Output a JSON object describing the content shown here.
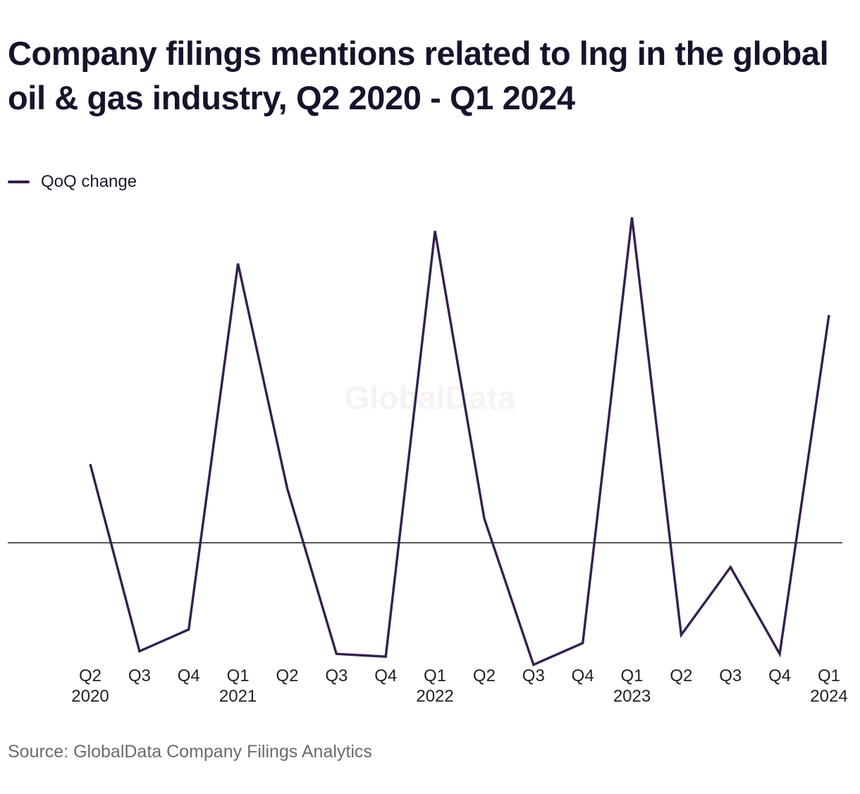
{
  "title": "Company filings mentions related to lng in the global oil & gas industry, Q2 2020 - Q1 2024",
  "legend": {
    "label": "QoQ change",
    "color": "#33204f"
  },
  "watermark": "GlobalData",
  "source": "Source: GlobalData Company Filings Analytics",
  "colors": {
    "line": "#33204f",
    "zero_line": "#111111",
    "text": "#222222"
  },
  "chart_data": {
    "type": "line",
    "title": "Company filings mentions related to lng in the global oil & gas industry, Q2 2020 - Q1 2024",
    "xlabel": "",
    "ylabel": "",
    "grid": false,
    "legend_position": "top-left",
    "zero_line": true,
    "y_axis_labels_shown": false,
    "ylim": [
      -4.3,
      11.8
    ],
    "categories": [
      [
        "Q2",
        "2020"
      ],
      [
        "Q3",
        ""
      ],
      [
        "Q4",
        ""
      ],
      [
        "Q1",
        "2021"
      ],
      [
        "Q2",
        ""
      ],
      [
        "Q3",
        ""
      ],
      [
        "Q4",
        ""
      ],
      [
        "Q1",
        "2022"
      ],
      [
        "Q2",
        ""
      ],
      [
        "Q3",
        ""
      ],
      [
        "Q4",
        ""
      ],
      [
        "Q1",
        "2023"
      ],
      [
        "Q2",
        ""
      ],
      [
        "Q3",
        ""
      ],
      [
        "Q4",
        ""
      ],
      [
        "Q1",
        "2024"
      ]
    ],
    "series": [
      {
        "name": "QoQ change",
        "values": [
          2.9,
          -4.0,
          -3.2,
          10.3,
          2.0,
          -4.1,
          -4.2,
          11.5,
          0.9,
          -4.5,
          -3.7,
          12.0,
          -3.4,
          -0.9,
          -4.1,
          8.4
        ]
      }
    ]
  }
}
